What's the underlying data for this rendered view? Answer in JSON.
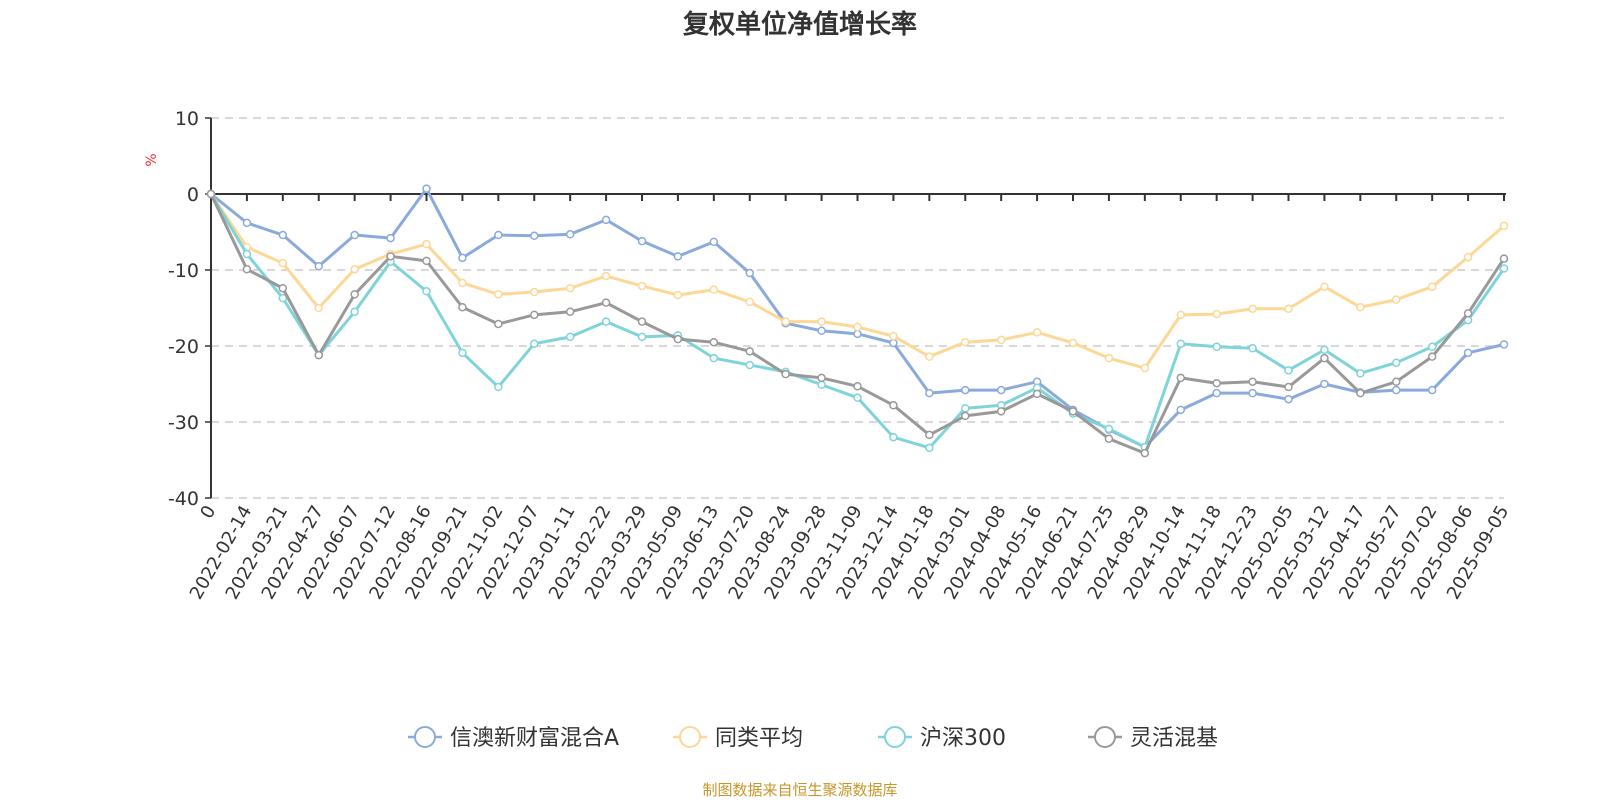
{
  "chart_data": {
    "type": "line",
    "title": "复权单位净值增长率",
    "ylabel": "%",
    "ylim": [
      -40,
      10
    ],
    "yticks": [
      10,
      0,
      -10,
      -20,
      -30,
      -40
    ],
    "grid": true,
    "legend_position": "bottom",
    "categories": [
      "0",
      "2022-02-14",
      "2022-03-21",
      "2022-04-27",
      "2022-06-07",
      "2022-07-12",
      "2022-08-16",
      "2022-09-21",
      "2022-11-02",
      "2022-12-07",
      "2023-01-11",
      "2023-02-22",
      "2023-03-29",
      "2023-05-09",
      "2023-06-13",
      "2023-07-20",
      "2023-08-24",
      "2023-09-28",
      "2023-11-09",
      "2023-12-14",
      "2024-01-18",
      "2024-03-01",
      "2024-04-08",
      "2024-05-16",
      "2024-06-21",
      "2024-07-25",
      "2024-08-29",
      "2024-10-14",
      "2024-11-18",
      "2024-12-23",
      "2025-02-05",
      "2025-03-12",
      "2025-04-17",
      "2025-05-27",
      "2025-07-02",
      "2025-08-06",
      "2025-09-05"
    ],
    "series": [
      {
        "name": "信澳新财富混合A",
        "color": "#8aaadc",
        "values": [
          0,
          -3.8,
          -5.4,
          -9.5,
          -5.4,
          -5.8,
          0.7,
          -8.4,
          -5.4,
          -5.5,
          -5.3,
          -3.4,
          -6.2,
          -8.2,
          -6.3,
          -10.4,
          -17.0,
          -18.0,
          -18.4,
          -19.6,
          -26.2,
          -25.8,
          -25.8,
          -24.7,
          -28.4,
          -31.0,
          -33.3,
          -28.4,
          -26.2,
          -26.2,
          -27.0,
          -25.0,
          -26.1,
          -25.8,
          -25.8,
          -20.9,
          -19.8
        ]
      },
      {
        "name": "同类平均",
        "color": "#fdd795",
        "values": [
          0,
          -7.0,
          -9.1,
          -15.0,
          -9.9,
          -7.9,
          -6.6,
          -11.7,
          -13.2,
          -12.9,
          -12.4,
          -10.8,
          -12.1,
          -13.3,
          -12.6,
          -14.2,
          -16.8,
          -16.8,
          -17.5,
          -18.7,
          -21.4,
          -19.5,
          -19.2,
          -18.2,
          -19.6,
          -21.6,
          -22.9,
          -15.9,
          -15.8,
          -15.1,
          -15.1,
          -12.2,
          -14.9,
          -13.9,
          -12.2,
          -8.3,
          -4.2
        ]
      },
      {
        "name": "沪深300",
        "color": "#7fd4d9",
        "values": [
          0,
          -7.9,
          -13.7,
          -21.2,
          -15.5,
          -8.9,
          -12.8,
          -20.9,
          -25.4,
          -19.7,
          -18.8,
          -16.8,
          -18.8,
          -18.6,
          -21.6,
          -22.5,
          -23.4,
          -25.1,
          -26.8,
          -32.0,
          -33.4,
          -28.2,
          -27.8,
          -25.5,
          -28.9,
          -30.9,
          -33.3,
          -19.7,
          -20.1,
          -20.3,
          -23.2,
          -20.5,
          -23.6,
          -22.2,
          -20.1,
          -16.6,
          -9.8
        ]
      },
      {
        "name": "灵活混基",
        "color": "#999999",
        "values": [
          0,
          -9.9,
          -12.4,
          -21.2,
          -13.2,
          -8.2,
          -8.8,
          -14.9,
          -17.1,
          -15.9,
          -15.5,
          -14.3,
          -16.8,
          -19.1,
          -19.5,
          -20.7,
          -23.7,
          -24.2,
          -25.3,
          -27.8,
          -31.7,
          -29.2,
          -28.6,
          -26.3,
          -28.6,
          -32.2,
          -34.1,
          -24.2,
          -24.9,
          -24.7,
          -25.4,
          -21.6,
          -26.2,
          -24.7,
          -21.4,
          -15.7,
          -8.5
        ]
      }
    ]
  },
  "footer": {
    "source": "制图数据来自恒生聚源数据库",
    "color": "#c8962a"
  }
}
